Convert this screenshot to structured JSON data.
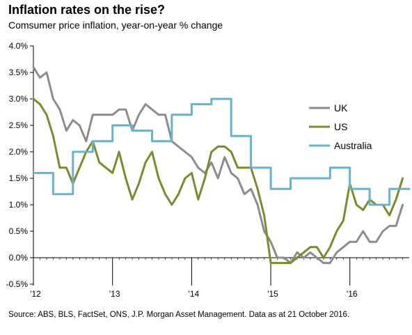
{
  "chart_data": {
    "type": "line",
    "title": "Inflation rates on the rise?",
    "subtitle": "Comsumer price inflation, year-on-year % change",
    "source": "Source: ABS, BLS, FactSet, ONS, J.P. Morgan Asset Management. Data as at 21 October 2016.",
    "xlabel": "",
    "ylabel": "",
    "xlim": [
      2012,
      2016.75
    ],
    "ylim": [
      -0.5,
      4.0
    ],
    "y_ticks": [
      -0.5,
      0.0,
      0.5,
      1.0,
      1.5,
      2.0,
      2.5,
      3.0,
      3.5,
      4.0
    ],
    "y_tick_labels": [
      "-0.5%",
      "0.0%",
      "0.5%",
      "1.0%",
      "1.5%",
      "2.0%",
      "2.5%",
      "3.0%",
      "3.5%",
      "4.0%"
    ],
    "x_ticks": [
      2012,
      2013,
      2014,
      2015,
      2016
    ],
    "x_tick_labels": [
      "'12",
      "'13",
      "'14",
      "'15",
      "'16"
    ],
    "grid": false,
    "legend_position": "top-right",
    "colors": {
      "UK": "#8c8c8c",
      "US": "#7a8a2e",
      "Australia": "#6bb1c9",
      "axis": "#000000"
    },
    "series": [
      {
        "name": "UK",
        "x": [
          2012.0,
          2012.083,
          2012.167,
          2012.25,
          2012.333,
          2012.417,
          2012.5,
          2012.583,
          2012.667,
          2012.75,
          2012.833,
          2012.917,
          2013.0,
          2013.083,
          2013.167,
          2013.25,
          2013.333,
          2013.417,
          2013.5,
          2013.583,
          2013.667,
          2013.75,
          2013.833,
          2013.917,
          2014.0,
          2014.083,
          2014.167,
          2014.25,
          2014.333,
          2014.417,
          2014.5,
          2014.583,
          2014.667,
          2014.75,
          2014.833,
          2014.917,
          2015.0,
          2015.083,
          2015.167,
          2015.25,
          2015.333,
          2015.417,
          2015.5,
          2015.583,
          2015.667,
          2015.75,
          2015.833,
          2015.917,
          2016.0,
          2016.083,
          2016.167,
          2016.25,
          2016.333,
          2016.417,
          2016.5,
          2016.583,
          2016.667
        ],
        "values": [
          3.6,
          3.4,
          3.5,
          3.0,
          2.8,
          2.4,
          2.6,
          2.5,
          2.2,
          2.7,
          2.7,
          2.7,
          2.7,
          2.8,
          2.8,
          2.4,
          2.7,
          2.9,
          2.8,
          2.7,
          2.7,
          2.2,
          2.1,
          2.0,
          1.9,
          1.7,
          1.6,
          1.8,
          1.5,
          1.9,
          1.6,
          1.5,
          1.2,
          1.3,
          1.0,
          0.5,
          0.3,
          0.0,
          0.0,
          -0.1,
          0.1,
          0.0,
          0.1,
          0.0,
          -0.1,
          -0.1,
          0.1,
          0.2,
          0.3,
          0.3,
          0.5,
          0.3,
          0.3,
          0.5,
          0.6,
          0.6,
          1.0
        ]
      },
      {
        "name": "US",
        "x": [
          2012.0,
          2012.083,
          2012.167,
          2012.25,
          2012.333,
          2012.417,
          2012.5,
          2012.583,
          2012.667,
          2012.75,
          2012.833,
          2012.917,
          2013.0,
          2013.083,
          2013.167,
          2013.25,
          2013.333,
          2013.417,
          2013.5,
          2013.583,
          2013.667,
          2013.75,
          2013.833,
          2013.917,
          2014.0,
          2014.083,
          2014.167,
          2014.25,
          2014.333,
          2014.417,
          2014.5,
          2014.583,
          2014.667,
          2014.75,
          2014.833,
          2014.917,
          2015.0,
          2015.083,
          2015.167,
          2015.25,
          2015.333,
          2015.417,
          2015.5,
          2015.583,
          2015.667,
          2015.75,
          2015.833,
          2015.917,
          2016.0,
          2016.083,
          2016.167,
          2016.25,
          2016.333,
          2016.417,
          2016.5,
          2016.583,
          2016.667
        ],
        "values": [
          3.0,
          2.9,
          2.7,
          2.3,
          1.7,
          1.7,
          1.4,
          1.7,
          2.0,
          2.2,
          1.8,
          1.7,
          1.6,
          2.0,
          1.5,
          1.1,
          1.4,
          1.8,
          2.0,
          1.5,
          1.2,
          1.0,
          1.2,
          1.5,
          1.6,
          1.1,
          1.5,
          2.0,
          2.1,
          2.1,
          2.0,
          1.7,
          1.7,
          1.7,
          1.3,
          0.8,
          -0.1,
          -0.1,
          -0.1,
          -0.1,
          0.0,
          0.1,
          0.2,
          0.2,
          0.0,
          0.2,
          0.5,
          0.7,
          1.4,
          1.0,
          0.9,
          1.1,
          1.0,
          1.0,
          0.8,
          1.1,
          1.5
        ]
      },
      {
        "name": "Australia",
        "x": [
          2012.0,
          2012.25,
          2012.5,
          2012.75,
          2013.0,
          2013.25,
          2013.5,
          2013.75,
          2014.0,
          2014.25,
          2014.5,
          2014.75,
          2015.0,
          2015.25,
          2015.5,
          2015.75,
          2016.0,
          2016.25,
          2016.5
        ],
        "values": [
          1.6,
          1.2,
          2.0,
          2.2,
          2.5,
          2.4,
          2.2,
          2.7,
          2.9,
          3.0,
          2.3,
          1.7,
          1.3,
          1.5,
          1.5,
          1.7,
          1.3,
          1.0,
          1.3
        ]
      }
    ]
  }
}
